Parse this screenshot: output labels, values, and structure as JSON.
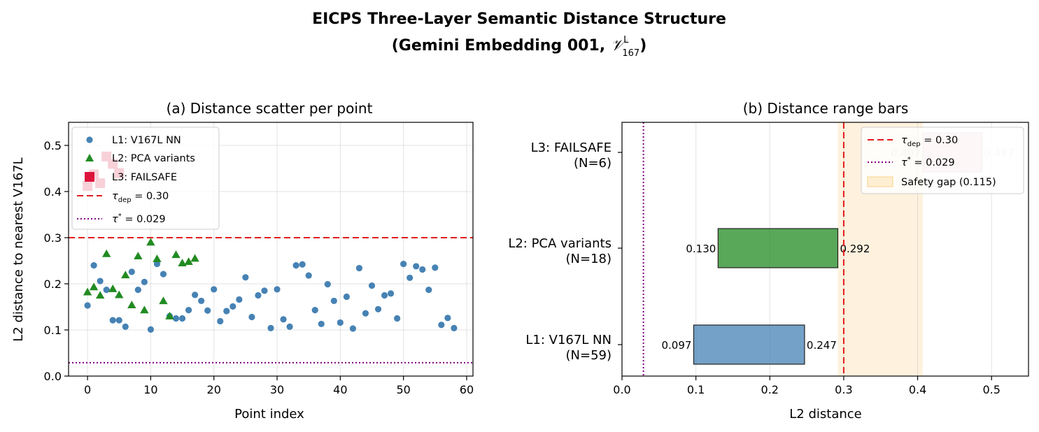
{
  "figure": {
    "title_line1": "EICPS Three-Layer Semantic Distance Structure",
    "title_line2_prefix": "(Gemini Embedding 001, ",
    "title_line2_math": "𝒱",
    "title_line2_sup": "L",
    "title_line2_sub": "167",
    "title_line2_suffix": ")"
  },
  "chart_data": [
    {
      "type": "scatter",
      "title": "(a) Distance scatter per point",
      "xlabel": "Point index",
      "ylabel": "L2 distance to nearest V167L",
      "xlim": [
        -3,
        61
      ],
      "ylim": [
        0,
        0.55
      ],
      "xticks": [
        0,
        10,
        20,
        30,
        40,
        50,
        60
      ],
      "yticks": [
        0.0,
        0.1,
        0.2,
        0.3,
        0.4,
        0.5
      ],
      "grid": true,
      "legend_position": "upper-left",
      "series": [
        {
          "name": "L1: V167L NN",
          "marker": "circle",
          "color": "#4682b4",
          "x": [
            0,
            1,
            2,
            3,
            4,
            5,
            6,
            7,
            8,
            9,
            10,
            11,
            12,
            13,
            14,
            15,
            16,
            17,
            18,
            19,
            20,
            21,
            22,
            23,
            24,
            25,
            26,
            27,
            28,
            29,
            30,
            31,
            32,
            33,
            34,
            35,
            36,
            37,
            38,
            39,
            40,
            41,
            42,
            43,
            44,
            45,
            46,
            47,
            48,
            49,
            50,
            51,
            52,
            53,
            54,
            55,
            56,
            57,
            58
          ],
          "y": [
            0.153,
            0.24,
            0.206,
            0.187,
            0.121,
            0.121,
            0.107,
            0.226,
            0.187,
            0.204,
            0.101,
            0.243,
            0.221,
            0.13,
            0.125,
            0.125,
            0.143,
            0.176,
            0.163,
            0.142,
            0.188,
            0.119,
            0.141,
            0.151,
            0.166,
            0.214,
            0.128,
            0.175,
            0.185,
            0.104,
            0.188,
            0.123,
            0.107,
            0.24,
            0.242,
            0.218,
            0.143,
            0.113,
            0.199,
            0.163,
            0.116,
            0.172,
            0.103,
            0.234,
            0.136,
            0.196,
            0.145,
            0.175,
            0.179,
            0.125,
            0.243,
            0.213,
            0.238,
            0.231,
            0.187,
            0.235,
            0.111,
            0.126,
            0.104
          ]
        },
        {
          "name": "L2: PCA variants",
          "marker": "triangle",
          "color": "#228b22",
          "x": [
            0,
            1,
            2,
            3,
            4,
            5,
            6,
            7,
            8,
            9,
            10,
            11,
            12,
            13,
            14,
            15,
            16,
            17
          ],
          "y": [
            0.182,
            0.193,
            0.175,
            0.265,
            0.189,
            0.176,
            0.219,
            0.154,
            0.26,
            0.143,
            0.29,
            0.254,
            0.163,
            0.13,
            0.263,
            0.245,
            0.248,
            0.255
          ]
        },
        {
          "name": "L3: FAILSAFE",
          "marker": "square",
          "color": "#dc143c",
          "x": [
            0,
            1,
            2,
            3,
            4,
            5
          ],
          "y": [
            0.412,
            0.437,
            0.418,
            0.476,
            0.46,
            0.44
          ]
        }
      ],
      "reference_lines": [
        {
          "label": "τ_dep = 0.30",
          "label_main": "τ",
          "label_sub": "dep",
          "label_tail": " = 0.30",
          "value": 0.3,
          "style": "dashed",
          "color": "#e31a1c"
        },
        {
          "label": "τ* = 0.029",
          "label_main": "τ",
          "label_sup": "*",
          "label_tail": " = 0.029",
          "value": 0.029,
          "style": "dotted",
          "color": "#800080"
        }
      ]
    },
    {
      "type": "bar",
      "orientation": "horizontal",
      "title": "(b) Distance range bars",
      "xlabel": "L2 distance",
      "xlim": [
        0,
        0.55
      ],
      "xticks": [
        0.0,
        0.1,
        0.2,
        0.3,
        0.4,
        0.5
      ],
      "grid": true,
      "legend_position": "upper-right",
      "categories": [
        {
          "line1": "L1: V167L NN",
          "line2": "(N=59)"
        },
        {
          "line1": "L2: PCA variants",
          "line2": "(N=18)"
        },
        {
          "line1": "L3: FAILSAFE",
          "line2": "(N=6)"
        }
      ],
      "ranges": [
        {
          "min": 0.097,
          "max": 0.247,
          "min_label": "0.097",
          "max_label": "0.247",
          "color": "#4682b4"
        },
        {
          "min": 0.13,
          "max": 0.292,
          "min_label": "0.130",
          "max_label": "0.292",
          "color": "#228b22"
        },
        {
          "min": 0.407,
          "max": 0.487,
          "min_label": "0.407",
          "max_label": "0.487",
          "color": "#dc143c"
        }
      ],
      "safety_gap": {
        "label": "Safety gap (0.115)",
        "from": 0.292,
        "to": 0.407,
        "color": "#fbd28a"
      },
      "reference_lines": [
        {
          "label": "τ_dep = 0.30",
          "label_main": "τ",
          "label_sub": "dep",
          "label_tail": " = 0.30",
          "value": 0.3,
          "style": "dashed",
          "color": "#e31a1c"
        },
        {
          "label": "τ* = 0.029",
          "label_main": "τ",
          "label_sup": "*",
          "label_tail": " = 0.029",
          "value": 0.029,
          "style": "dotted",
          "color": "#800080"
        }
      ]
    }
  ]
}
